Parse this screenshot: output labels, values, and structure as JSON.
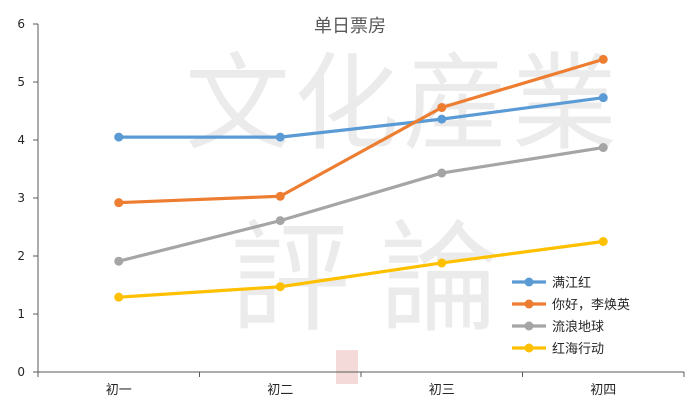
{
  "chart_data": {
    "type": "line",
    "title": "单日票房",
    "categories": [
      "初一",
      "初二",
      "初三",
      "初四"
    ],
    "series": [
      {
        "name": "满江红",
        "color": "#5B9BD5",
        "values": [
          4.05,
          4.05,
          4.36,
          4.73
        ]
      },
      {
        "name": "你好，李焕英",
        "color": "#ED7D31",
        "values": [
          2.92,
          3.03,
          4.56,
          5.39
        ]
      },
      {
        "name": "流浪地球",
        "color": "#A5A5A5",
        "values": [
          1.91,
          2.61,
          3.43,
          3.87
        ]
      },
      {
        "name": "红海行动",
        "color": "#FFC000",
        "values": [
          1.29,
          1.47,
          1.88,
          2.25
        ]
      }
    ],
    "xlabel": "",
    "ylabel": "",
    "ylim": [
      0,
      6
    ],
    "yticks": [
      0,
      1,
      2,
      3,
      4,
      5,
      6
    ],
    "grid": false,
    "legend": "bottom-right"
  },
  "watermark": {
    "line1": "文化産業",
    "line2": "評論"
  }
}
